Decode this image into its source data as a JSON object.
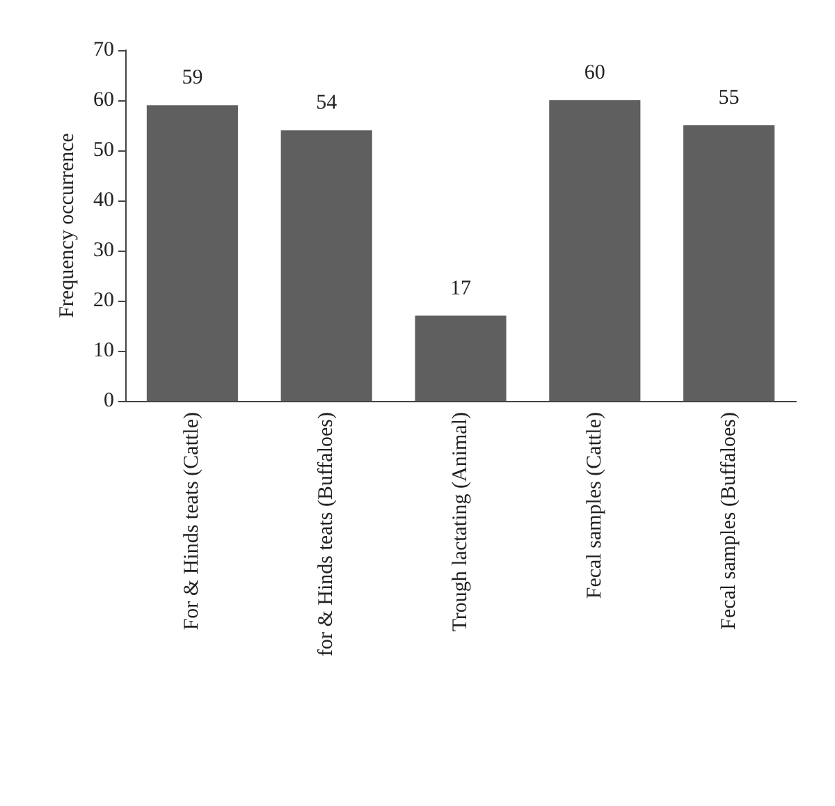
{
  "chart_data": {
    "type": "bar",
    "ylabel": "Frequency occurrence",
    "categories": [
      "For & Hinds teats (Cattle)",
      "for & Hinds teats (Buffaloes)",
      "Trough lactating (Animal)",
      "Fecal samples (Cattle)",
      "Fecal samples (Buffaloes)"
    ],
    "values": [
      59,
      54,
      17,
      60,
      55
    ],
    "color": "#5f5f5f",
    "ylim": [
      0,
      70
    ],
    "yticks": [
      0,
      10,
      20,
      30,
      40,
      50,
      60,
      70
    ],
    "grid": false,
    "data_labels": true
  }
}
